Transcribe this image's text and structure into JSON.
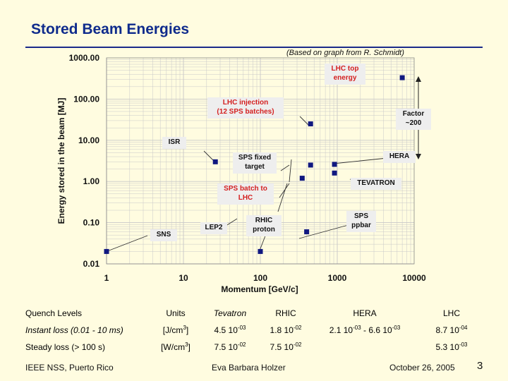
{
  "title": "Stored Beam Energies",
  "credit": "(Based on graph from R. Schmidt)",
  "chart_data": {
    "type": "scatter",
    "xscale": "log",
    "yscale": "log",
    "xlim": [
      1,
      10000
    ],
    "ylim": [
      0.01,
      1000
    ],
    "xlabel": "Momentum [GeV/c]",
    "ylabel": "Energy stored in the beam [MJ]",
    "xticks": [
      "1",
      "10",
      "100",
      "1000",
      "10000"
    ],
    "yticks": [
      "0.01",
      "0.10",
      "1.00",
      "10.00",
      "100.00",
      "1000.00"
    ],
    "grid": true,
    "points": [
      {
        "x": 1,
        "y": 0.02
      },
      {
        "x": 26,
        "y": 3.0
      },
      {
        "x": 100,
        "y": 0.02
      },
      {
        "x": 350,
        "y": 1.2
      },
      {
        "x": 450,
        "y": 2.5
      },
      {
        "x": 450,
        "y": 25
      },
      {
        "x": 920,
        "y": 1.6
      },
      {
        "x": 920,
        "y": 2.6
      },
      {
        "x": 400,
        "y": 0.06
      },
      {
        "x": 7000,
        "y": 330
      }
    ],
    "annotations": [
      {
        "text": "LHC top energy",
        "lines": [
          "LHC top",
          "energy"
        ],
        "color": "#d42020"
      },
      {
        "text": "LHC injection (12 SPS batches)",
        "lines": [
          "LHC injection",
          "(12 SPS batches)"
        ],
        "color": "#d42020"
      },
      {
        "text": "Factor ~200",
        "lines": [
          "Factor",
          "~200"
        ],
        "color": "#111111"
      },
      {
        "text": "ISR",
        "lines": [
          "ISR"
        ],
        "color": "#111111"
      },
      {
        "text": "SPS fixed target",
        "lines": [
          "SPS fixed",
          "target"
        ],
        "color": "#111111"
      },
      {
        "text": "HERA",
        "lines": [
          "HERA"
        ],
        "color": "#111111"
      },
      {
        "text": "TEVATRON",
        "lines": [
          "TEVATRON"
        ],
        "color": "#111111"
      },
      {
        "text": "SPS batch to LHC",
        "lines": [
          "SPS batch to",
          "LHC"
        ],
        "color": "#d42020"
      },
      {
        "text": "RHIC proton",
        "lines": [
          "RHIC",
          "proton"
        ],
        "color": "#111111"
      },
      {
        "text": "SPS ppbar",
        "lines": [
          "SPS",
          "ppbar"
        ],
        "color": "#111111"
      },
      {
        "text": "LEP2",
        "lines": [
          "LEP2"
        ],
        "color": "#111111"
      },
      {
        "text": "SNS",
        "lines": [
          "SNS"
        ],
        "color": "#111111"
      }
    ],
    "colors": {
      "marker": "#101880",
      "grid": "#c8c8c8",
      "box": "#eeeeee",
      "red": "#d42020"
    }
  },
  "table": {
    "headers": [
      "Quench Levels",
      "Units",
      "Tevatron",
      "RHIC",
      "HERA",
      "LHC"
    ],
    "rows": [
      {
        "label": "Instant loss (0.01 - 10 ms)",
        "unit": "[J/cm",
        "unit_sup": "3",
        "unit_end": "]",
        "tev": "4.5 10",
        "tev_sup": "-03",
        "rhic": "1.8 10",
        "rhic_sup": "-02",
        "hera_a": "2.1 10",
        "hera_a_sup": "-03",
        "hera_b": " - 6.6 10",
        "hera_b_sup": "-03",
        "lhc": "8.7 10",
        "lhc_sup": "-04"
      },
      {
        "label": "Steady loss (> 100 s)",
        "unit": "[W/cm",
        "unit_sup": "3",
        "unit_end": "]",
        "tev": "7.5 10",
        "tev_sup": "-02",
        "rhic": "7.5 10",
        "rhic_sup": "-02",
        "lhc": "5.3 10",
        "lhc_sup": "-03"
      }
    ]
  },
  "footer": {
    "left": "IEEE NSS, Puerto Rico",
    "center": "Eva Barbara Holzer",
    "date": "October 26, 2005",
    "page": "3"
  }
}
